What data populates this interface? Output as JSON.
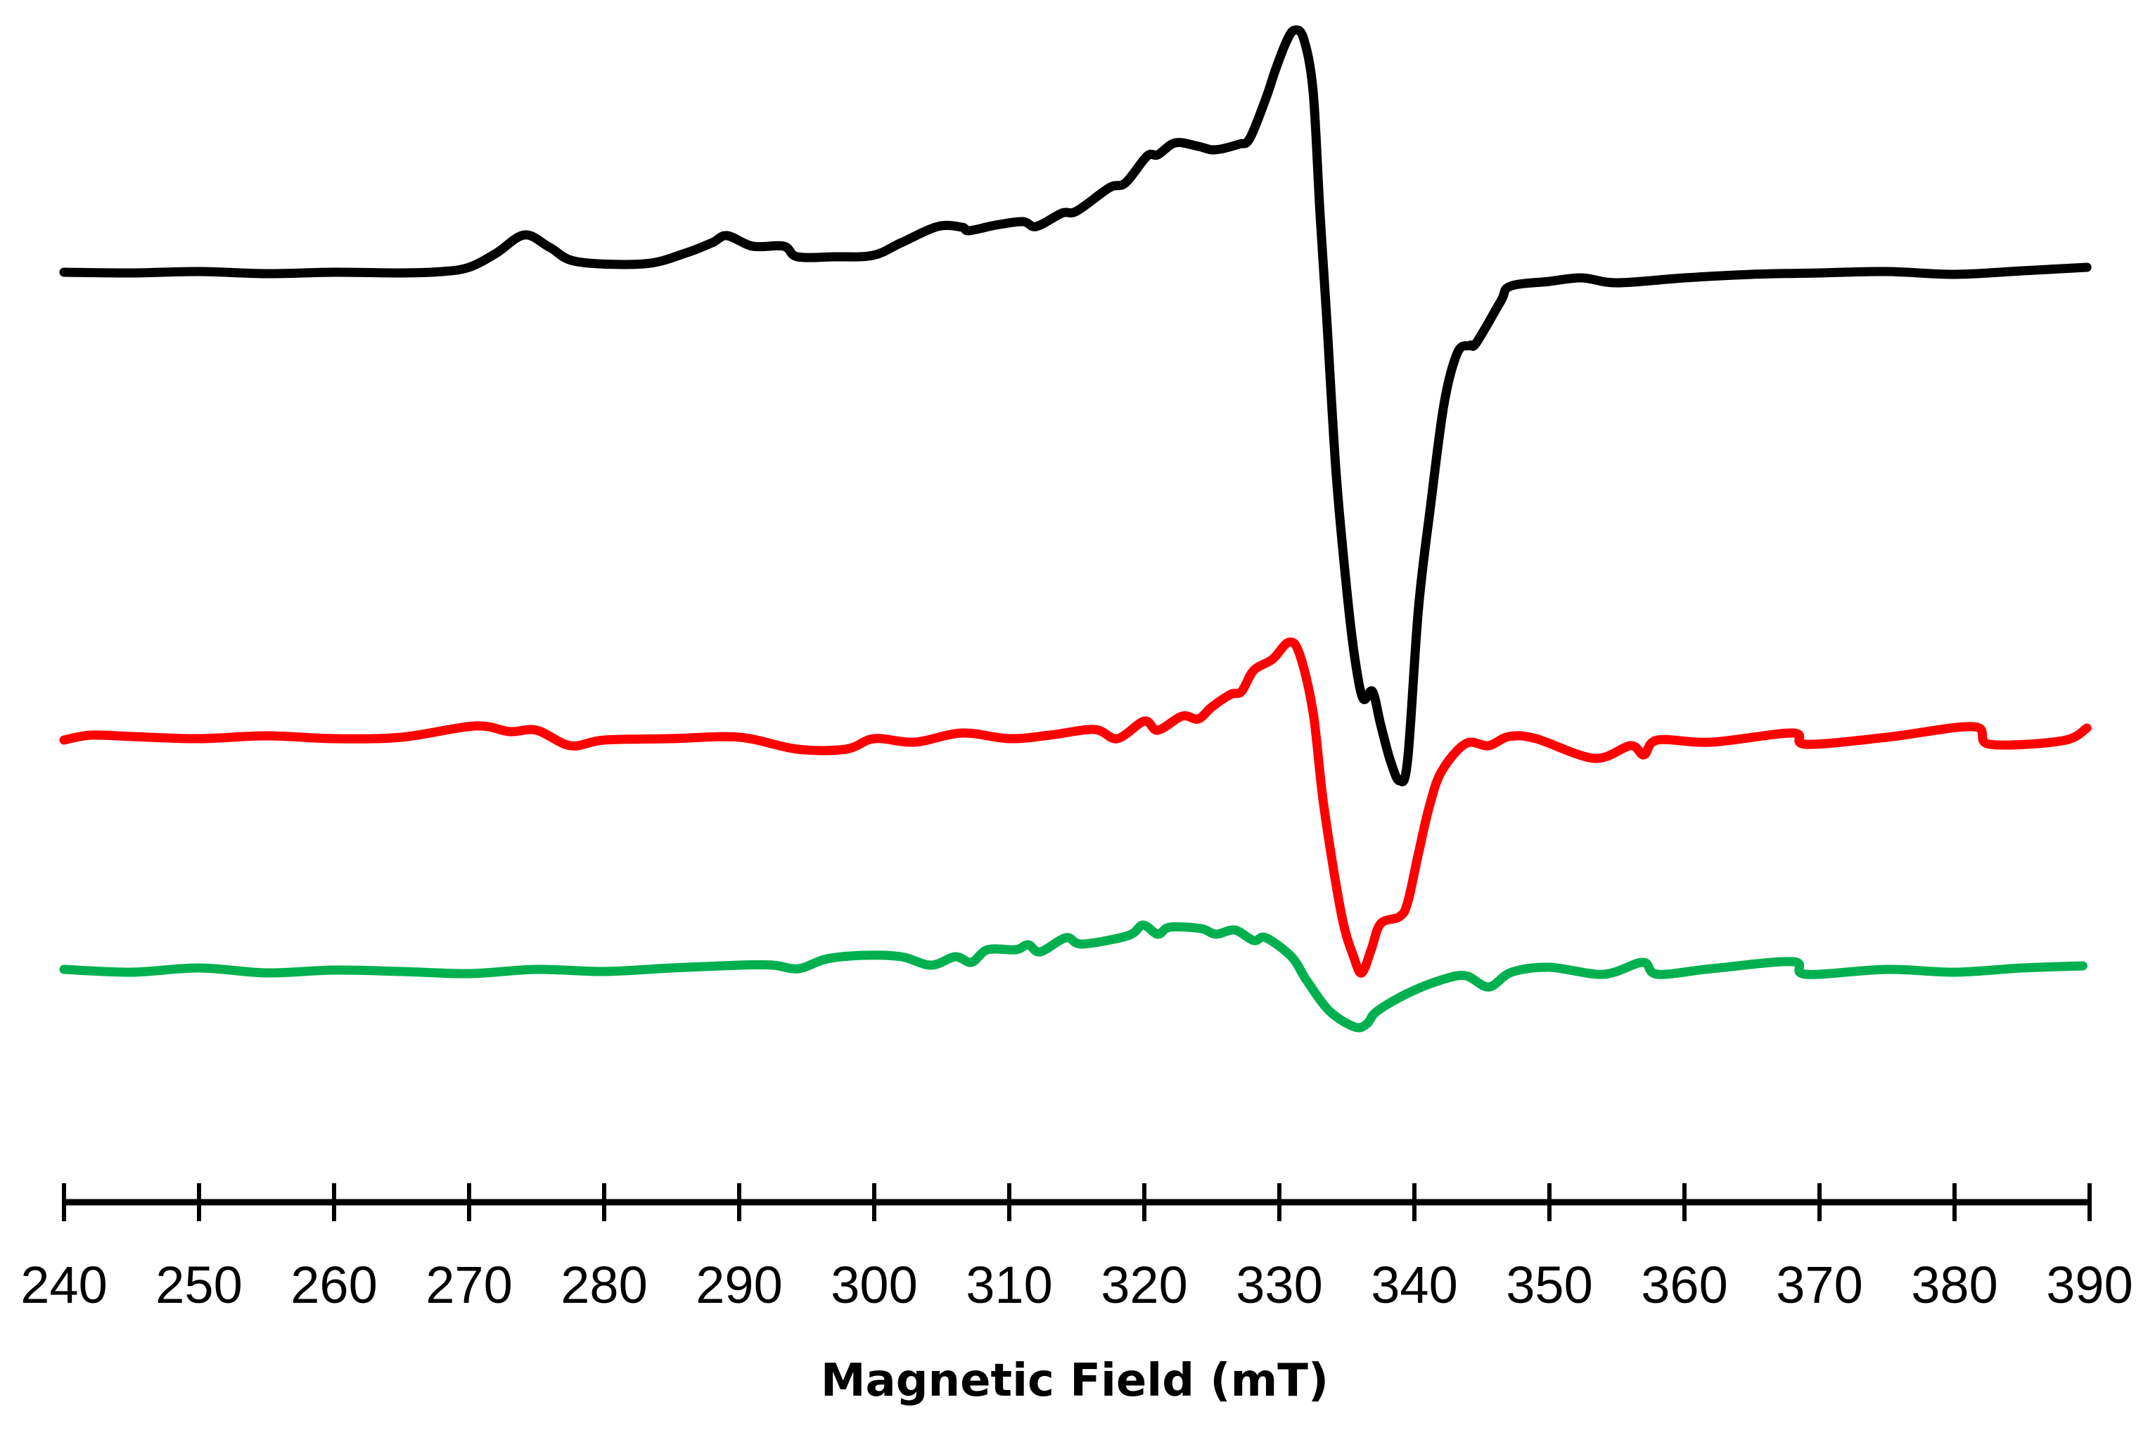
{
  "chart_data": {
    "type": "line",
    "title": "",
    "xlabel": "Magnetic Field (mT)",
    "ylabel": "",
    "xlim": [
      240,
      390
    ],
    "x_ticks": [
      240,
      250,
      260,
      270,
      280,
      290,
      300,
      310,
      320,
      330,
      340,
      350,
      360,
      370,
      380,
      390
    ],
    "x_tick_labels": [
      "240",
      "250",
      "260",
      "270",
      "280",
      "290",
      "300",
      "310",
      "320",
      "330",
      "340",
      "350",
      "360",
      "370",
      "380",
      "390"
    ],
    "y_axis_visible": false,
    "grid": false,
    "legend": null,
    "intensity_units": "arbitrary (stacked, offset traces)",
    "series": [
      {
        "name": "black trace",
        "color": "#000000",
        "offset": 387,
        "points": [
          [
            240,
            0
          ],
          [
            245,
            -1
          ],
          [
            250,
            1
          ],
          [
            255,
            -2
          ],
          [
            260,
            0
          ],
          [
            265,
            -1
          ],
          [
            268,
            1
          ],
          [
            270,
            7
          ],
          [
            272,
            27
          ],
          [
            274.1,
            53
          ],
          [
            276,
            35
          ],
          [
            278,
            15
          ],
          [
            283,
            12
          ],
          [
            286,
            27
          ],
          [
            288,
            42
          ],
          [
            289.1,
            52
          ],
          [
            291,
            37
          ],
          [
            293.3,
            37
          ],
          [
            294.3,
            22
          ],
          [
            297,
            22
          ],
          [
            299.9,
            24
          ],
          [
            302,
            42
          ],
          [
            304.7,
            65
          ],
          [
            306.5,
            64
          ],
          [
            307,
            59
          ],
          [
            309,
            67
          ],
          [
            311,
            72
          ],
          [
            312,
            65
          ],
          [
            313.9,
            84
          ],
          [
            315,
            87
          ],
          [
            317.4,
            120
          ],
          [
            318.6,
            127
          ],
          [
            320.2,
            165
          ],
          [
            321,
            167
          ],
          [
            322.3,
            184
          ],
          [
            324,
            179
          ],
          [
            325.2,
            174
          ],
          [
            327,
            182
          ],
          [
            327.8,
            190
          ],
          [
            329,
            247
          ],
          [
            329.7,
            287
          ],
          [
            330.5,
            327
          ],
          [
            331.1,
            344
          ],
          [
            331.8,
            332
          ],
          [
            332.5,
            257
          ],
          [
            333,
            87
          ],
          [
            333.5,
            -63
          ],
          [
            334.2,
            -284
          ],
          [
            335,
            -453
          ],
          [
            335.6,
            -550
          ],
          [
            336.2,
            -606
          ],
          [
            336.9,
            -596
          ],
          [
            337.5,
            -643
          ],
          [
            338.2,
            -693
          ],
          [
            338.9,
            -723
          ],
          [
            339.5,
            -693
          ],
          [
            340.3,
            -478
          ],
          [
            341.2,
            -332
          ],
          [
            342.2,
            -187
          ],
          [
            343.2,
            -114
          ],
          [
            344.1,
            -104
          ],
          [
            344.6,
            -100
          ],
          [
            346.4,
            -41
          ],
          [
            347.1,
            -20
          ],
          [
            350,
            -13
          ],
          [
            352.4,
            -8
          ],
          [
            355,
            -15
          ],
          [
            360,
            -8
          ],
          [
            365,
            -3
          ],
          [
            370,
            -1
          ],
          [
            375,
            1
          ],
          [
            380,
            -3
          ],
          [
            385,
            2
          ],
          [
            389.8,
            7
          ]
        ]
      },
      {
        "name": "red trace",
        "color": "#ff0000",
        "offset": 1047,
        "points": [
          [
            240,
            -5
          ],
          [
            242,
            2
          ],
          [
            245,
            0
          ],
          [
            250,
            -3
          ],
          [
            255,
            1
          ],
          [
            260,
            -3
          ],
          [
            265,
            -1
          ],
          [
            270.4,
            15
          ],
          [
            273,
            7
          ],
          [
            275,
            9
          ],
          [
            277.5,
            -13
          ],
          [
            280,
            -5
          ],
          [
            285,
            -3
          ],
          [
            290,
            -1
          ],
          [
            294.3,
            -18
          ],
          [
            297.9,
            -18
          ],
          [
            300,
            -3
          ],
          [
            303,
            -8
          ],
          [
            306.5,
            5
          ],
          [
            310,
            -3
          ],
          [
            313,
            2
          ],
          [
            316.3,
            10
          ],
          [
            318,
            -3
          ],
          [
            320,
            22
          ],
          [
            321,
            9
          ],
          [
            322.8,
            29
          ],
          [
            324,
            25
          ],
          [
            325,
            42
          ],
          [
            326.4,
            60
          ],
          [
            327.2,
            64
          ],
          [
            328.1,
            94
          ],
          [
            329.5,
            110
          ],
          [
            330.7,
            134
          ],
          [
            331.5,
            117
          ],
          [
            332.5,
            34
          ],
          [
            333.3,
            -100
          ],
          [
            334.6,
            -253
          ],
          [
            335.5,
            -313
          ],
          [
            336.1,
            -336
          ],
          [
            336.8,
            -303
          ],
          [
            337.5,
            -266
          ],
          [
            338.9,
            -256
          ],
          [
            339.5,
            -236
          ],
          [
            340.3,
            -166
          ],
          [
            341.1,
            -100
          ],
          [
            342,
            -50
          ],
          [
            343.8,
            -10
          ],
          [
            345.5,
            -13
          ],
          [
            347,
            0
          ],
          [
            349,
            -3
          ],
          [
            353.3,
            -31
          ],
          [
            356,
            -13
          ],
          [
            357,
            -26
          ],
          [
            358,
            -5
          ],
          [
            362,
            -8
          ],
          [
            368,
            5
          ],
          [
            369,
            -11
          ],
          [
            375,
            -1
          ],
          [
            381.4,
            14
          ],
          [
            382.6,
            -11
          ],
          [
            388,
            -6
          ],
          [
            389.8,
            12
          ]
        ]
      },
      {
        "name": "green trace",
        "color": "#00b050",
        "offset": 1380,
        "points": [
          [
            240,
            2
          ],
          [
            245,
            -2
          ],
          [
            250,
            4
          ],
          [
            255,
            -3
          ],
          [
            260,
            1
          ],
          [
            265,
            -1
          ],
          [
            270,
            -4
          ],
          [
            275,
            2
          ],
          [
            280,
            -1
          ],
          [
            285,
            4
          ],
          [
            290,
            8
          ],
          [
            292.5,
            8
          ],
          [
            294.4,
            3
          ],
          [
            296.5,
            17
          ],
          [
            299.3,
            22
          ],
          [
            302,
            20
          ],
          [
            304.2,
            8
          ],
          [
            306,
            20
          ],
          [
            307.2,
            12
          ],
          [
            308.4,
            30
          ],
          [
            310.5,
            30
          ],
          [
            311.4,
            37
          ],
          [
            312.3,
            27
          ],
          [
            314.2,
            47
          ],
          [
            315.4,
            38
          ],
          [
            318.8,
            50
          ],
          [
            319.9,
            65
          ],
          [
            321,
            52
          ],
          [
            321.9,
            62
          ],
          [
            324.2,
            60
          ],
          [
            325.3,
            52
          ],
          [
            326.7,
            58
          ],
          [
            328.1,
            43
          ],
          [
            329,
            47
          ],
          [
            330.9,
            20
          ],
          [
            332,
            -13
          ],
          [
            333.7,
            -57
          ],
          [
            335.6,
            -80
          ],
          [
            336.5,
            -75
          ],
          [
            337.2,
            -58
          ],
          [
            339.4,
            -33
          ],
          [
            342,
            -13
          ],
          [
            343.8,
            -7
          ],
          [
            345.5,
            -23
          ],
          [
            347.2,
            -2
          ],
          [
            350,
            5
          ],
          [
            354,
            -5
          ],
          [
            356.9,
            12
          ],
          [
            358,
            -5
          ],
          [
            362,
            3
          ],
          [
            368,
            13
          ],
          [
            369,
            -5
          ],
          [
            375,
            2
          ],
          [
            380,
            -2
          ],
          [
            385,
            4
          ],
          [
            389.5,
            7
          ]
        ]
      }
    ]
  },
  "axis": {
    "title": "Magnetic Field (mT)",
    "tick_labels": [
      "240",
      "250",
      "260",
      "270",
      "280",
      "290",
      "300",
      "310",
      "320",
      "330",
      "340",
      "350",
      "360",
      "370",
      "380",
      "390"
    ]
  }
}
